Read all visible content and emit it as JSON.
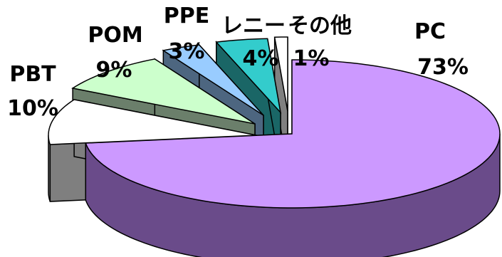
{
  "chart_data": {
    "type": "pie",
    "title": "",
    "style": "3d-exploded",
    "slices": [
      {
        "name": "PC",
        "value": 73,
        "label": "73%",
        "color": "#cc99ff",
        "side_color": "#6a4b8a"
      },
      {
        "name": "PBT",
        "value": 10,
        "label": "10%",
        "color": "#ffffff",
        "side_color": "#7f7f7f"
      },
      {
        "name": "POM",
        "value": 9,
        "label": "9%",
        "color": "#ccffcc",
        "side_color": "#6b7f6b"
      },
      {
        "name": "PPE",
        "value": 3,
        "label": "3%",
        "color": "#99ccff",
        "side_color": "#4d6680"
      },
      {
        "name": "レニー",
        "value": 4,
        "label": "4%",
        "color": "#33cccc",
        "side_color": "#1a6666"
      },
      {
        "name": "その他",
        "value": 1,
        "label": "1%",
        "color": "#ffffff",
        "side_color": "#808080"
      }
    ]
  }
}
